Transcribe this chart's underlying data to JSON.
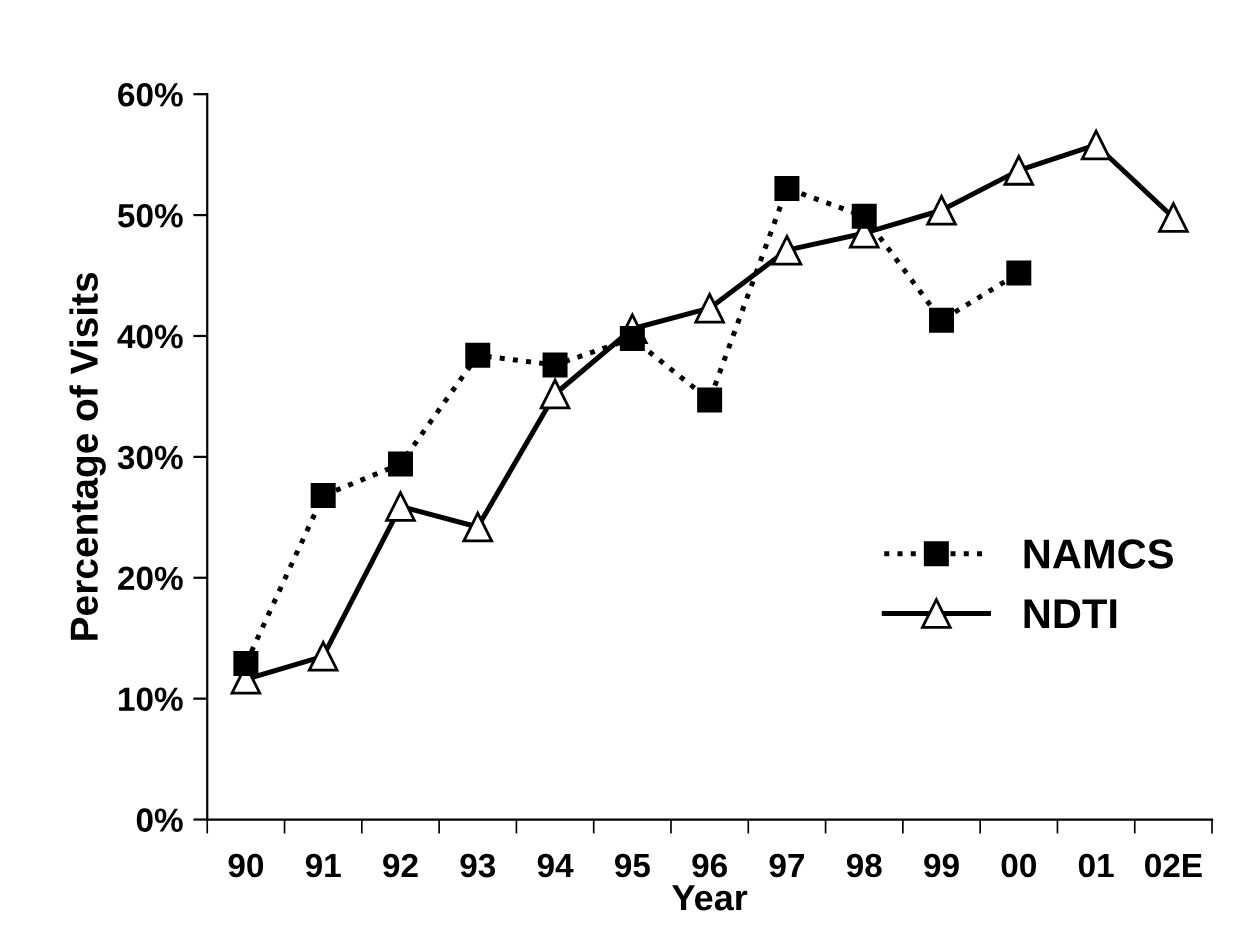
{
  "chart_data": {
    "type": "line",
    "xlabel": "Year",
    "ylabel": "Percentage of Visits",
    "categories": [
      "90",
      "91",
      "92",
      "93",
      "94",
      "95",
      "96",
      "97",
      "98",
      "99",
      "00",
      "01",
      "02E"
    ],
    "series": [
      {
        "name": "NAMCS",
        "color": "#000000",
        "marker": "square",
        "line_style": "dotted",
        "values": [
          12.9,
          26.8,
          29.4,
          38.4,
          37.6,
          39.8,
          34.7,
          52.2,
          49.9,
          41.3,
          45.2,
          null,
          null
        ]
      },
      {
        "name": "NDTI",
        "color": "#000000",
        "marker": "triangle",
        "line_style": "solid",
        "values": [
          11.6,
          13.5,
          25.9,
          24.2,
          35.2,
          40.6,
          42.3,
          47.1,
          48.5,
          50.4,
          53.7,
          55.8,
          49.8
        ]
      }
    ],
    "ylim": [
      0,
      60
    ],
    "yticks": [
      {
        "value": 0,
        "label": "0%"
      },
      {
        "value": 10,
        "label": "10%"
      },
      {
        "value": 20,
        "label": "20%"
      },
      {
        "value": 30,
        "label": "30%"
      },
      {
        "value": 40,
        "label": "40%"
      },
      {
        "value": 50,
        "label": "50%"
      },
      {
        "value": 60,
        "label": "60%"
      }
    ],
    "grid": false,
    "legend": "right"
  }
}
